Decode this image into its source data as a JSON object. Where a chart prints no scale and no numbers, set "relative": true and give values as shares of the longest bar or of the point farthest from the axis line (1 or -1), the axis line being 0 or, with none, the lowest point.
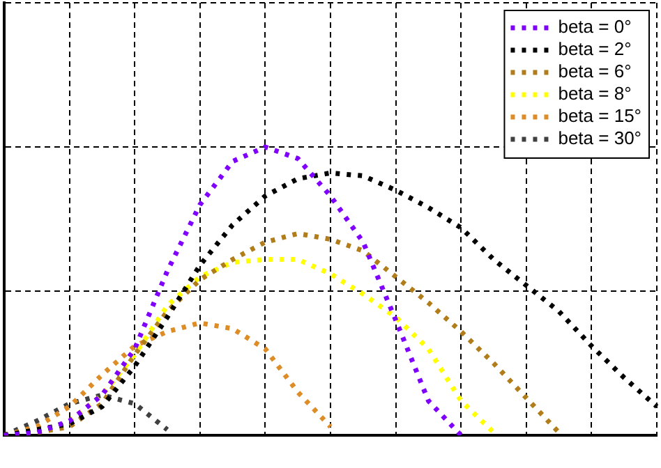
{
  "chart_data": {
    "type": "line",
    "relative": true,
    "grid": true,
    "legend": "top right",
    "marker": "none",
    "line_style": "dotted",
    "categories": [
      null,
      null,
      null,
      null,
      null,
      null,
      null,
      null,
      null,
      null,
      null,
      null,
      null,
      null,
      null,
      null,
      null,
      null,
      null,
      null,
      null
    ],
    "series": [
      {
        "name": "beta = 0°",
        "color": "#8000ff",
        "values": [
          0,
          0.01,
          0.05,
          0.14,
          0.3,
          0.57,
          0.8,
          0.95,
          1.0,
          0.96,
          0.83,
          0.67,
          0.4,
          0.12,
          0,
          null,
          null,
          null,
          null,
          null,
          null
        ]
      },
      {
        "name": "beta = 2°",
        "color": "#000000",
        "values": [
          0,
          0.02,
          0.04,
          0.1,
          0.24,
          0.41,
          0.59,
          0.73,
          0.83,
          0.89,
          0.91,
          0.9,
          0.85,
          0.79,
          0.72,
          0.61,
          0.52,
          0.43,
          0.31,
          0.2,
          0.1
        ]
      },
      {
        "name": "beta = 6°",
        "color": "#b07d1a",
        "values": [
          0,
          0.01,
          0.03,
          0.11,
          0.28,
          0.43,
          0.54,
          0.61,
          0.67,
          0.7,
          0.68,
          0.64,
          0.55,
          0.46,
          0.36,
          0.25,
          0.13,
          0.01,
          null,
          null,
          null
        ]
      },
      {
        "name": "beta = 8°",
        "color": "#ffff00",
        "values": [
          null,
          null,
          0.05,
          0.14,
          0.28,
          0.45,
          0.55,
          0.6,
          0.61,
          0.61,
          0.56,
          0.49,
          0.41,
          0.3,
          0.12,
          0.01,
          null,
          null,
          null,
          null,
          null
        ]
      },
      {
        "name": "beta = 15°",
        "color": "#dd8c26",
        "values": [
          0,
          0.03,
          0.1,
          0.21,
          0.31,
          0.36,
          0.39,
          0.37,
          0.3,
          0.15,
          0.03,
          null,
          null,
          null,
          null,
          null,
          null,
          null,
          null,
          null,
          null
        ]
      },
      {
        "name": "beta = 30°",
        "color": "#404040",
        "values": [
          0,
          0.05,
          0.11,
          0.14,
          0.11,
          0.02,
          null,
          null,
          null,
          null,
          null,
          null,
          null,
          null,
          null,
          null,
          null,
          null,
          null,
          null,
          null
        ]
      }
    ]
  }
}
